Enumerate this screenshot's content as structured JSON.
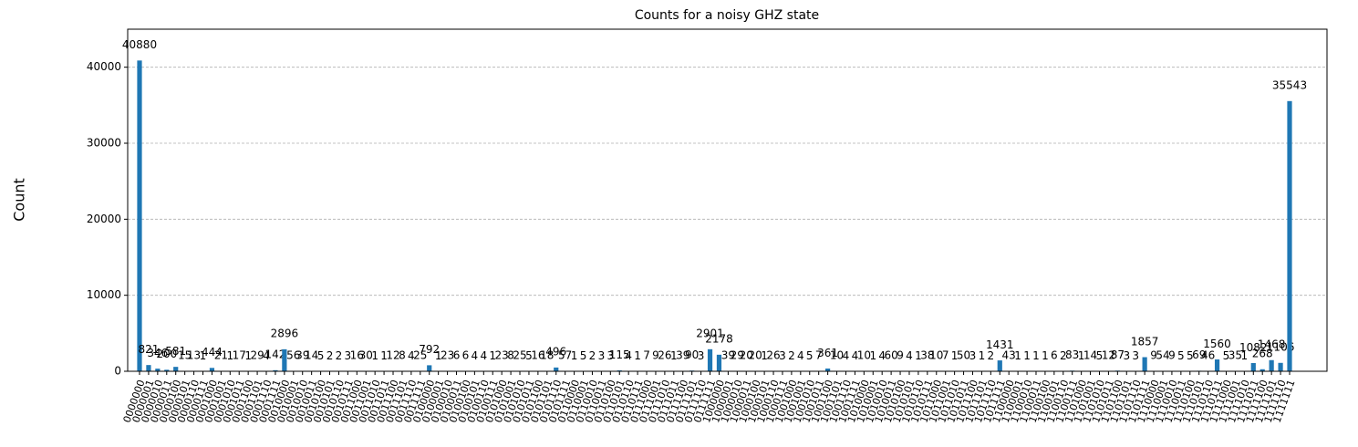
{
  "chart_data": {
    "type": "bar",
    "title": "Counts for a noisy GHZ state",
    "y_label": "Count",
    "categories": [
      "0000000",
      "0000001",
      "0000010",
      "0000011",
      "0000100",
      "0000101",
      "0000110",
      "0000111",
      "0001000",
      "0001001",
      "0001010",
      "0001011",
      "0001100",
      "0001101",
      "0001110",
      "0001111",
      "0010000",
      "0010001",
      "0010010",
      "0010011",
      "0010100",
      "0010101",
      "0010110",
      "0010111",
      "0011000",
      "0011001",
      "0011010",
      "0011011",
      "0011100",
      "0011101",
      "0011110",
      "0011111",
      "0100000",
      "0100001",
      "0100010",
      "0100011",
      "0100100",
      "0100101",
      "0100110",
      "0100111",
      "0101000",
      "0101001",
      "0101010",
      "0101011",
      "0101100",
      "0101101",
      "0101110",
      "0101111",
      "0110000",
      "0110001",
      "0110010",
      "0110011",
      "0110100",
      "0110101",
      "0110110",
      "0110111",
      "0111000",
      "0111001",
      "0111010",
      "0111011",
      "0111100",
      "0111101",
      "0111110",
      "0111111",
      "1000000",
      "1000001",
      "1000010",
      "1000011",
      "1000100",
      "1000101",
      "1000110",
      "1000111",
      "1001000",
      "1001001",
      "1001010",
      "1001011",
      "1001100",
      "1001101",
      "1001110",
      "1001111",
      "1010000",
      "1010001",
      "1010010",
      "1010011",
      "1010100",
      "1010101",
      "1010110",
      "1010111",
      "1011000",
      "1011001",
      "1011010",
      "1011011",
      "1011100",
      "1011101",
      "1011110",
      "1011111",
      "1100000",
      "1100001",
      "1100010",
      "1100011",
      "1100100",
      "1100101",
      "1100110",
      "1100111",
      "1101000",
      "1101001",
      "1101010",
      "1101011",
      "1101100",
      "1101101",
      "1101110",
      "1101111",
      "1110000",
      "1110001",
      "1110010",
      "1110011",
      "1110100",
      "1110101",
      "1110110",
      "1110111",
      "1111000",
      "1111001",
      "1111010",
      "1111011",
      "1111100",
      "1111101",
      "1111110",
      "1111111"
    ],
    "values": [
      40880,
      821,
      346,
      200,
      581,
      15,
      13,
      1,
      444,
      21,
      1,
      17,
      1,
      29,
      4,
      142,
      2896,
      56,
      39,
      14,
      5,
      2,
      2,
      3,
      16,
      30,
      1,
      1,
      12,
      8,
      4,
      25,
      792,
      1,
      23,
      6,
      6,
      4,
      4,
      1,
      23,
      8,
      25,
      5,
      16,
      18,
      496,
      57,
      1,
      5,
      2,
      3,
      3,
      115,
      4,
      1,
      7,
      9,
      26,
      1,
      39,
      90,
      3,
      2901,
      2178,
      39,
      29,
      20,
      20,
      1,
      26,
      3,
      2,
      4,
      5,
      7,
      361,
      10,
      4,
      4,
      10,
      1,
      4,
      60,
      9,
      4,
      1,
      38,
      10,
      7,
      1,
      50,
      3,
      1,
      2,
      1431,
      43,
      1,
      1,
      1,
      1,
      6,
      2,
      83,
      1,
      14,
      5,
      12,
      87,
      3,
      3,
      1857,
      9,
      54,
      9,
      5,
      5,
      69,
      46,
      1560,
      5,
      35,
      1,
      1082,
      268,
      1468,
      1106,
      35543
    ],
    "color": "#1f77b4",
    "ylim": [
      0,
      45000
    ],
    "yticks": [
      0,
      10000,
      20000,
      30000,
      40000
    ],
    "grid": true
  }
}
